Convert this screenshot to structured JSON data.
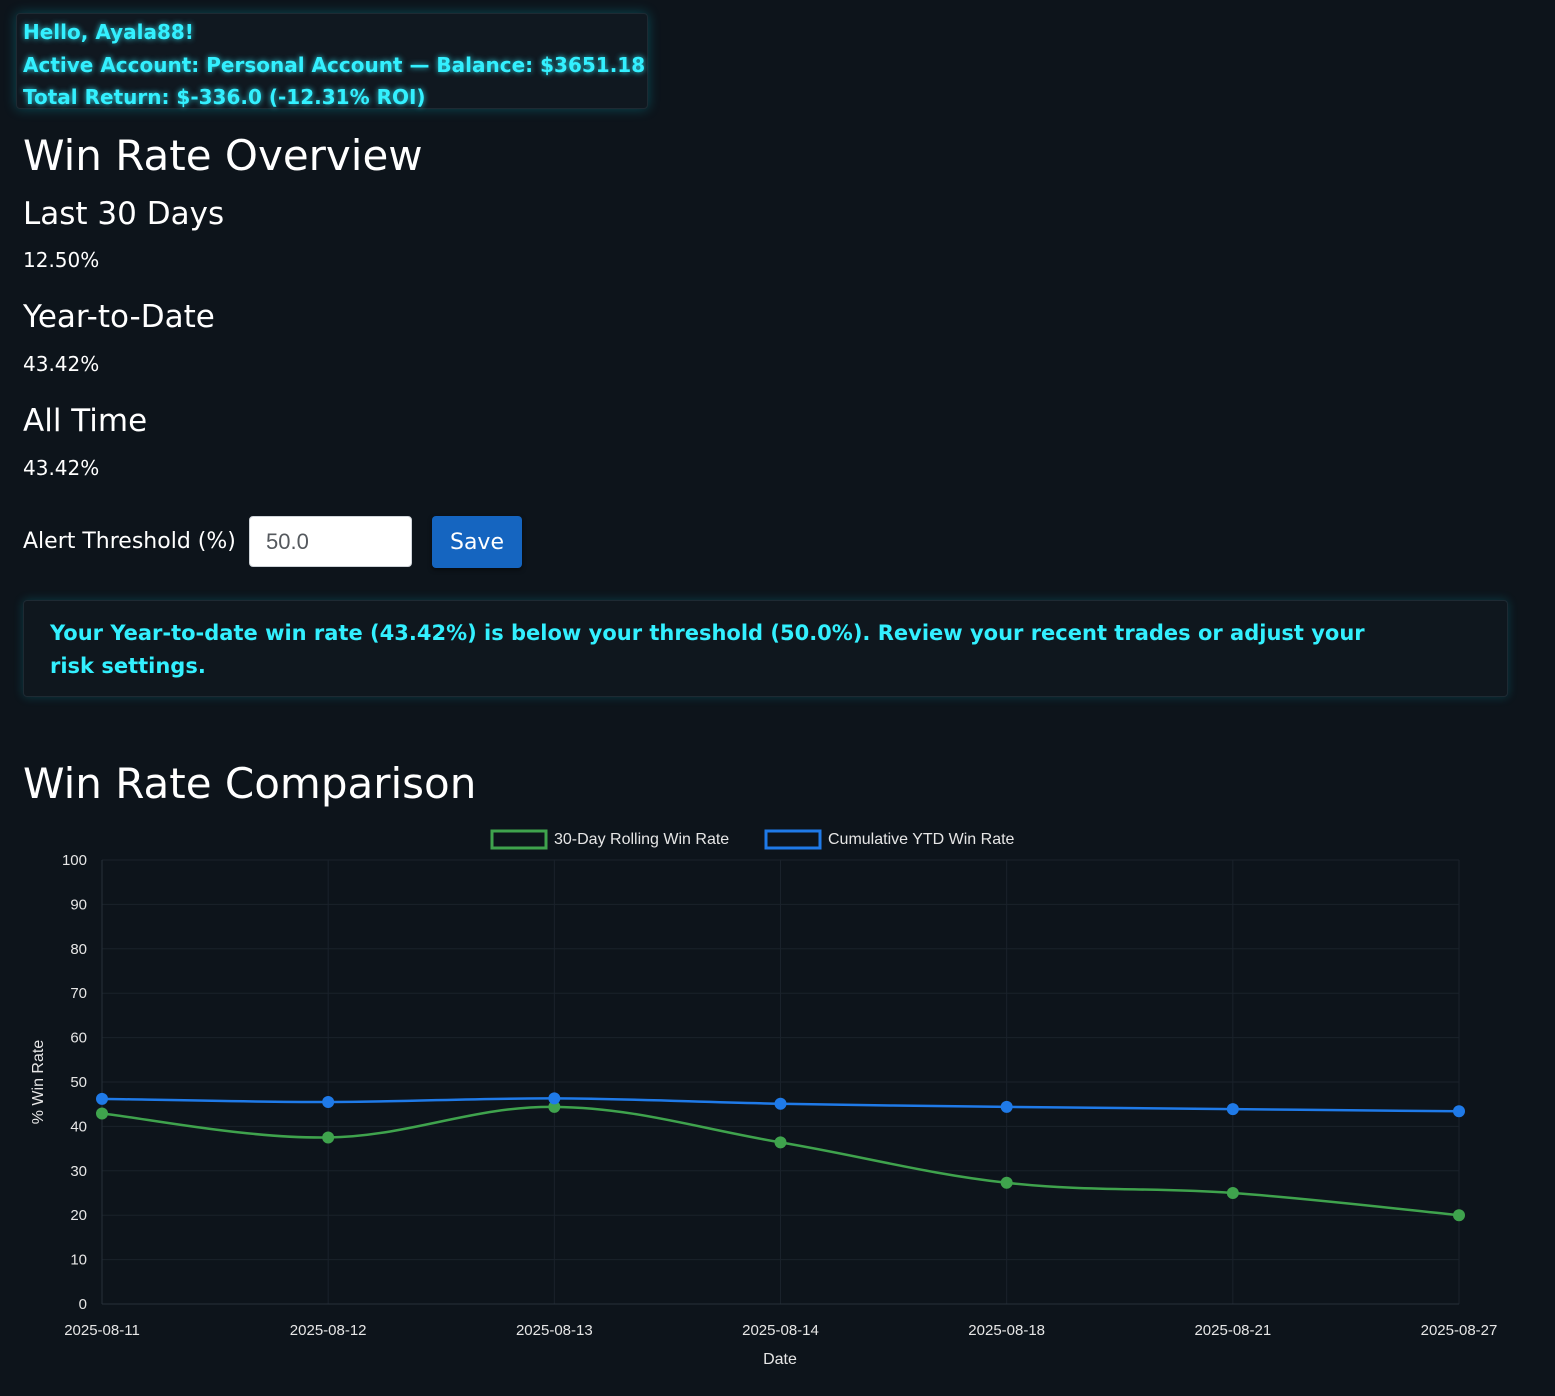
{
  "header": {
    "greeting": "Hello, Ayala88!",
    "account_line": "Active Account: Personal Account — Balance: $3651.18",
    "return_line": "Total Return: $-336.0 (-12.31% ROI)"
  },
  "overview": {
    "title": "Win Rate Overview",
    "stats": [
      {
        "label": "Last 30 Days",
        "value": "12.50%"
      },
      {
        "label": "Year-to-Date",
        "value": "43.42%"
      },
      {
        "label": "All Time",
        "value": "43.42%"
      }
    ]
  },
  "threshold": {
    "label": "Alert Threshold (%)",
    "value": "50.0",
    "save_label": "Save"
  },
  "alert": {
    "message": "Your Year-to-date win rate (43.42%) is below your threshold (50.0%). Review your recent trades or adjust your risk settings."
  },
  "comparison": {
    "title": "Win Rate Comparison"
  },
  "colors": {
    "accent_cyan": "#33f0ff",
    "series_green": "#3fa34d",
    "series_blue": "#1f7ae8",
    "button_blue": "#1565c0",
    "background": "#0d141b"
  },
  "chart_data": {
    "type": "line",
    "x": [
      "2025-08-11",
      "2025-08-12",
      "2025-08-13",
      "2025-08-14",
      "2025-08-18",
      "2025-08-21",
      "2025-08-27"
    ],
    "series": [
      {
        "name": "30-Day Rolling Win Rate",
        "color": "#3fa34d",
        "values": [
          42.9,
          37.5,
          44.4,
          36.4,
          27.3,
          25.0,
          20.0
        ]
      },
      {
        "name": "Cumulative YTD Win Rate",
        "color": "#1f7ae8",
        "values": [
          46.2,
          45.5,
          46.3,
          45.1,
          44.4,
          43.9,
          43.4
        ]
      }
    ],
    "xlabel": "Date",
    "ylabel": "% Win Rate",
    "ylim": [
      0,
      100
    ],
    "yticks": [
      0,
      10,
      20,
      30,
      40,
      50,
      60,
      70,
      80,
      90,
      100
    ],
    "legend_position": "top-center",
    "grid": true
  }
}
